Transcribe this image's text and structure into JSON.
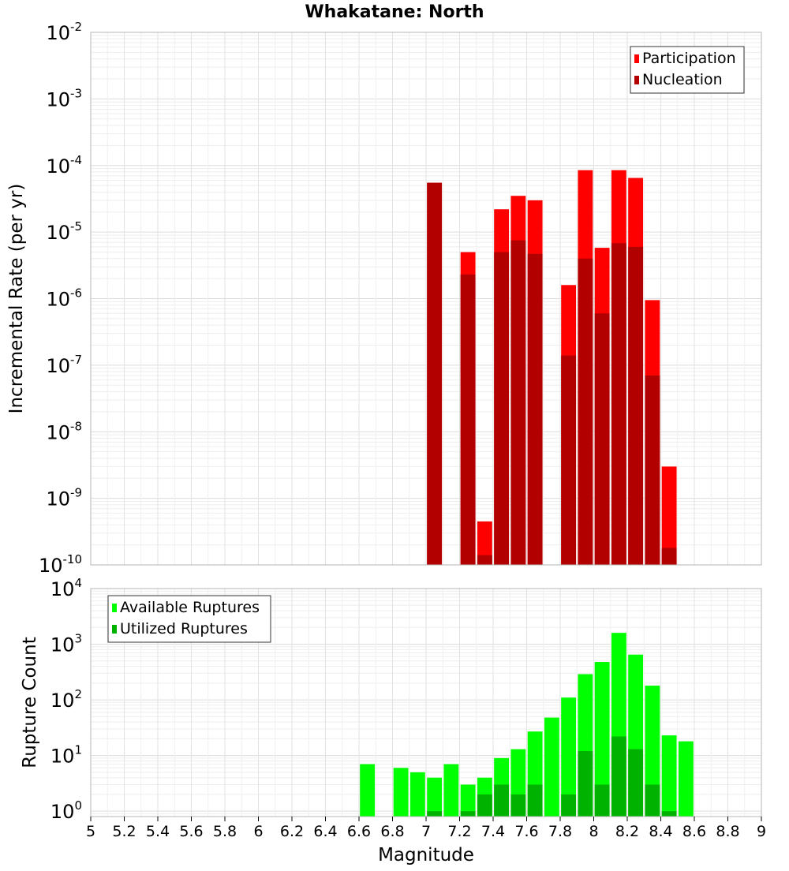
{
  "chart_data": [
    {
      "type": "bar",
      "title": "Whakatane: North",
      "ylabel": "Incremental Rate (per yr)",
      "yscale": "log",
      "ylim": [
        1e-10,
        0.01
      ],
      "y_ticks": [
        {
          "base": "10",
          "exp": "-10"
        },
        {
          "base": "10",
          "exp": "-9"
        },
        {
          "base": "10",
          "exp": "-8"
        },
        {
          "base": "10",
          "exp": "-7"
        },
        {
          "base": "10",
          "exp": "-6"
        },
        {
          "base": "10",
          "exp": "-5"
        },
        {
          "base": "10",
          "exp": "-4"
        },
        {
          "base": "10",
          "exp": "-3"
        },
        {
          "base": "10",
          "exp": "-2"
        }
      ],
      "legend_position": "top-right",
      "grid": true,
      "x": [
        7.05,
        7.25,
        7.35,
        7.45,
        7.55,
        7.65,
        7.85,
        7.95,
        8.05,
        8.15,
        8.25,
        8.35,
        8.45
      ],
      "series": [
        {
          "name": "Participation",
          "color": "#ff0000",
          "values": [
            5.5e-05,
            5e-06,
            4.5e-10,
            2.2e-05,
            3.5e-05,
            3e-05,
            1.6e-06,
            8.5e-05,
            5.8e-06,
            8.5e-05,
            6.5e-05,
            9.5e-07,
            3e-09
          ]
        },
        {
          "name": "Nucleation",
          "color": "#b20000",
          "values": [
            5.5e-05,
            2.3e-06,
            1.4e-10,
            5e-06,
            7.5e-06,
            4.7e-06,
            1.4e-07,
            4e-06,
            6e-07,
            6.8e-06,
            6e-06,
            7e-08,
            1.8e-10
          ]
        }
      ]
    },
    {
      "type": "bar",
      "xlabel": "Magnitude",
      "ylabel": "Rupture Count",
      "yscale": "log",
      "ylim": [
        0.8,
        10000
      ],
      "xlim": [
        5,
        9
      ],
      "y_ticks": [
        {
          "base": "10",
          "exp": "0"
        },
        {
          "base": "10",
          "exp": "1"
        },
        {
          "base": "10",
          "exp": "2"
        },
        {
          "base": "10",
          "exp": "3"
        },
        {
          "base": "10",
          "exp": "4"
        }
      ],
      "x_ticks": [
        "5",
        "5.2",
        "5.4",
        "5.6",
        "5.8",
        "6",
        "6.2",
        "6.4",
        "6.6",
        "6.8",
        "7",
        "7.2",
        "7.4",
        "7.6",
        "7.8",
        "8",
        "8.2",
        "8.4",
        "8.6",
        "8.8",
        "9"
      ],
      "legend_position": "top-left",
      "grid": true,
      "x": [
        6.65,
        6.85,
        6.95,
        7.05,
        7.15,
        7.25,
        7.35,
        7.45,
        7.55,
        7.65,
        7.75,
        7.85,
        7.95,
        8.05,
        8.15,
        8.25,
        8.35,
        8.45,
        8.55
      ],
      "series": [
        {
          "name": "Available Ruptures",
          "color": "#00ff00",
          "values": [
            7,
            6,
            5,
            4,
            7,
            3,
            4,
            9,
            13,
            27,
            48,
            110,
            290,
            480,
            1600,
            650,
            180,
            23,
            18
          ]
        },
        {
          "name": "Utilized Ruptures",
          "color": "#00b200",
          "values": [
            0,
            0,
            0,
            1,
            0,
            1,
            2,
            3,
            2,
            3,
            0,
            2,
            12,
            3,
            22,
            13,
            3,
            1,
            0
          ]
        }
      ]
    }
  ]
}
